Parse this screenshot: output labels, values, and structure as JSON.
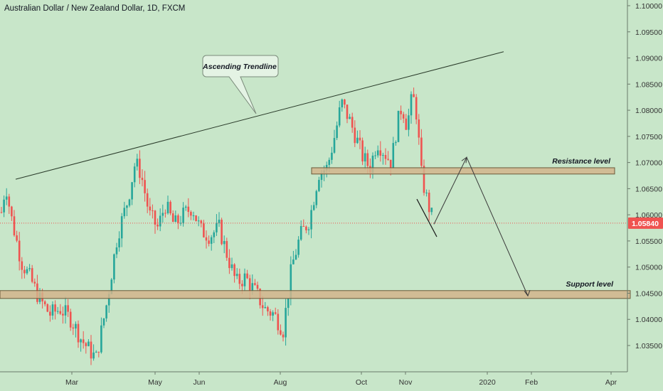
{
  "header": {
    "title": "Australian Dollar / New Zealand Dollar, 1D, FXCM"
  },
  "colors": {
    "background": "#c8e6c9",
    "up": "#26a69a",
    "down": "#ef5350",
    "zone_fill": "#d2b48c",
    "zone_stroke": "#6b5a3a",
    "price_line": "#ef5350",
    "price_badge": "#ef5350"
  },
  "chart_data": {
    "type": "candlestick",
    "symbol": "Australian Dollar / New Zealand Dollar",
    "interval": "1D",
    "source": "FXCM",
    "ylim": [
      1.03,
      1.1
    ],
    "y_ticks": [
      "1.10000",
      "1.09500",
      "1.09000",
      "1.08500",
      "1.08000",
      "1.07500",
      "1.07000",
      "1.06500",
      "1.06000",
      "1.05500",
      "1.05000",
      "1.04500",
      "1.04000",
      "1.03500"
    ],
    "x_ticks": [
      "Mar",
      "May",
      "Jun",
      "Aug",
      "Oct",
      "Nov",
      "2020",
      "Feb",
      "Apr"
    ],
    "last_price": "1.05840",
    "last_price_value": 1.0584,
    "key_prices": [
      {
        "label": "left_start",
        "price": 1.0638
      },
      {
        "label": "early_high",
        "price": 1.066
      },
      {
        "label": "march_low",
        "price": 1.0325
      },
      {
        "label": "april_high",
        "price": 1.0725
      },
      {
        "label": "may_range",
        "price": 1.059
      },
      {
        "label": "aug_low",
        "price": 1.0345
      },
      {
        "label": "sep_high",
        "price": 1.083
      },
      {
        "label": "oct_range",
        "price": 1.07
      },
      {
        "label": "oct_high",
        "price": 1.0865
      },
      {
        "label": "nov_drop",
        "price": 1.065
      },
      {
        "label": "current",
        "price": 1.0584
      }
    ],
    "annotations": [
      {
        "type": "trendline",
        "label": "Ascending Trendline",
        "from_price": 1.0668,
        "to_price": 1.0912
      },
      {
        "type": "zone",
        "label": "Resistance level",
        "top": 1.069,
        "bottom": 1.0678
      },
      {
        "type": "zone",
        "label": "Support level",
        "top": 1.0455,
        "bottom": 1.044
      },
      {
        "type": "projection",
        "path_prices": [
          1.0582,
          1.071,
          1.0445
        ]
      }
    ]
  }
}
